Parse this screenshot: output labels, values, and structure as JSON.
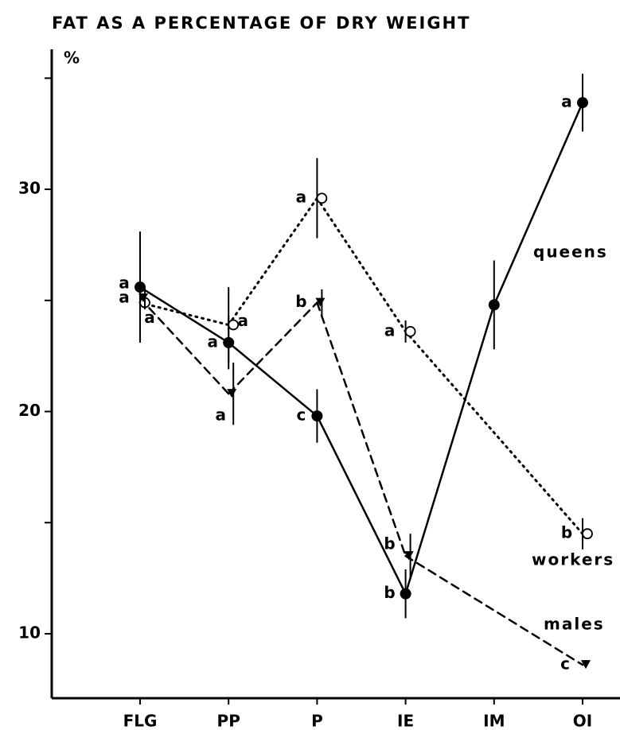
{
  "chart_data": {
    "type": "line",
    "title": "FAT AS A PERCENTAGE OF DRY WEIGHT",
    "y_label": "%",
    "categories": [
      "FLG",
      "PP",
      "P",
      "IE",
      "IM",
      "OI"
    ],
    "ylim": [
      7.1,
      36.3
    ],
    "yticks": [
      10,
      20,
      30
    ],
    "minor_yticks": [
      15,
      25,
      35
    ],
    "connect_gaps": true,
    "series": [
      {
        "name": "queens",
        "color": "#000000",
        "marker": "filled-circle",
        "line": "solid",
        "values": [
          25.6,
          23.1,
          19.8,
          11.8,
          24.8,
          33.9
        ],
        "errors": [
          2.5,
          1.2,
          1.2,
          1.1,
          2.0,
          1.3
        ],
        "letters": [
          "a",
          "a",
          "c",
          "b",
          null,
          "a"
        ]
      },
      {
        "name": "workers",
        "color": "#000000",
        "marker": "open-circle",
        "line": "dotted",
        "values": [
          24.9,
          23.9,
          29.6,
          23.6,
          null,
          14.5
        ],
        "errors": [
          1.0,
          1.7,
          1.8,
          0.5,
          null,
          0.7
        ],
        "letters": [
          "a",
          "a",
          "a",
          "a",
          null,
          "b"
        ]
      },
      {
        "name": "males",
        "color": "#000000",
        "marker": "triangle",
        "line": "dashed",
        "values": [
          25.1,
          20.8,
          24.9,
          13.5,
          null,
          8.6
        ],
        "errors": [
          0.5,
          1.4,
          0.6,
          1.0,
          null,
          null
        ],
        "letters": [
          "a",
          "a",
          "b",
          "b",
          null,
          "c"
        ]
      }
    ]
  }
}
